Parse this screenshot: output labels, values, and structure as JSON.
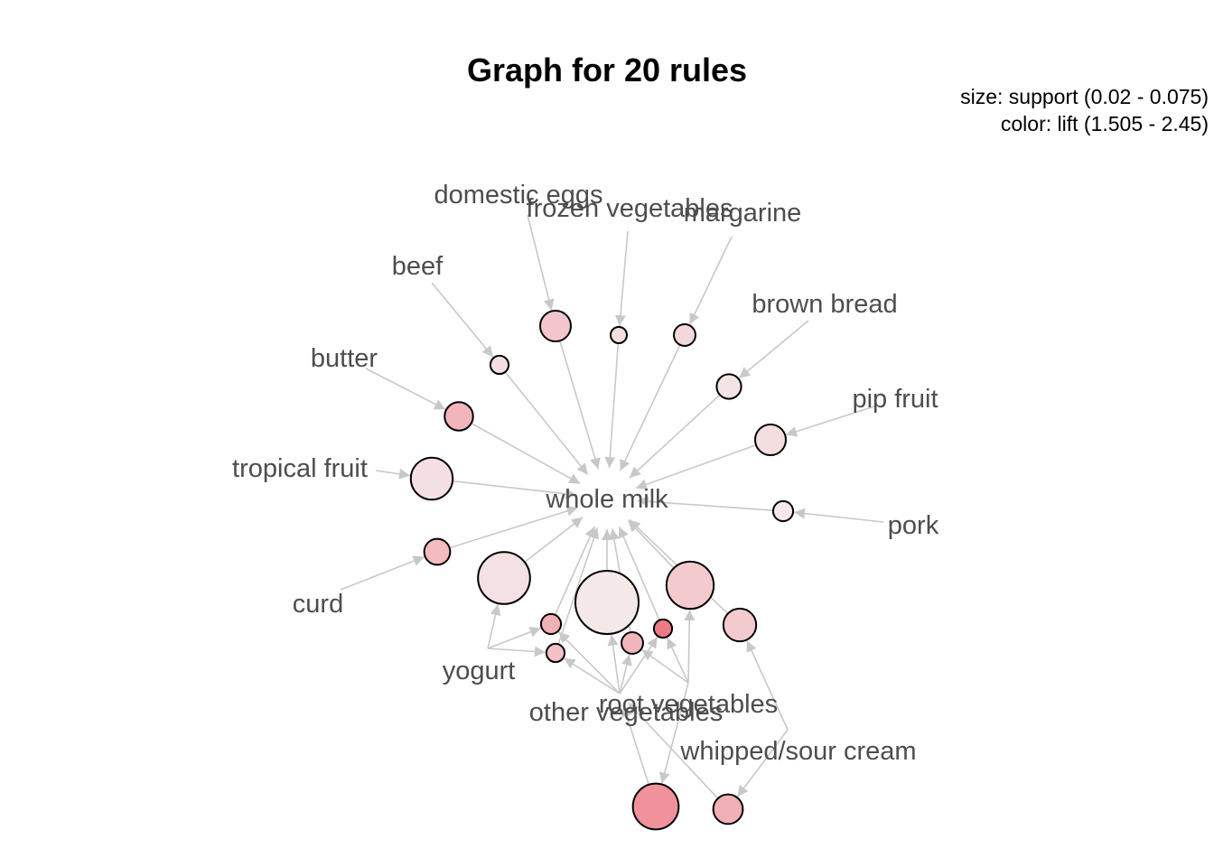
{
  "title": "Graph for 20 rules",
  "legend": {
    "size": "size: support (0.02 - 0.075)",
    "color": "color: lift (1.505 - 2.45)"
  },
  "colors": {
    "edge": "#c8c8c8",
    "label": "#4d4d4d",
    "node_stroke": "#000000",
    "lift_low": "#f4e9ea",
    "lift_high": "#ef7a86"
  },
  "items": {
    "whole_milk": "whole milk",
    "domestic_eggs": "domestic eggs",
    "frozen_vegetables": "frozen vegetables",
    "margarine": "margarine",
    "beef": "beef",
    "brown_bread": "brown bread",
    "butter": "butter",
    "pip_fruit": "pip fruit",
    "tropical_fruit": "tropical fruit",
    "pork": "pork",
    "curd": "curd",
    "yogurt": "yogurt",
    "root_vegetables": "root vegetables",
    "other_vegetables": "other vegetables",
    "whipped_sour_cream": "whipped/sour cream"
  },
  "rules": [
    {
      "lhs": [
        "domestic_eggs"
      ],
      "rhs": "whole_milk",
      "support": 0.03,
      "lift": 1.8
    },
    {
      "lhs": [
        "frozen_vegetables"
      ],
      "rhs": "whole_milk",
      "support": 0.02,
      "lift": 1.6
    },
    {
      "lhs": [
        "margarine"
      ],
      "rhs": "whole_milk",
      "support": 0.023,
      "lift": 1.65
    },
    {
      "lhs": [
        "beef"
      ],
      "rhs": "whole_milk",
      "support": 0.021,
      "lift": 1.6
    },
    {
      "lhs": [
        "brown_bread"
      ],
      "rhs": "whole_milk",
      "support": 0.025,
      "lift": 1.55
    },
    {
      "lhs": [
        "butter"
      ],
      "rhs": "whole_milk",
      "support": 0.028,
      "lift": 1.95
    },
    {
      "lhs": [
        "pip_fruit"
      ],
      "rhs": "whole_milk",
      "support": 0.03,
      "lift": 1.6
    },
    {
      "lhs": [
        "tropical_fruit"
      ],
      "rhs": "whole_milk",
      "support": 0.042,
      "lift": 1.58
    },
    {
      "lhs": [
        "pork"
      ],
      "rhs": "whole_milk",
      "support": 0.022,
      "lift": 1.52
    },
    {
      "lhs": [
        "curd"
      ],
      "rhs": "whole_milk",
      "support": 0.026,
      "lift": 1.9
    },
    {
      "lhs": [
        "yogurt"
      ],
      "rhs": "whole_milk",
      "support": 0.056,
      "lift": 1.57
    },
    {
      "lhs": [
        "other_vegetables"
      ],
      "rhs": "whole_milk",
      "support": 0.075,
      "lift": 1.51
    },
    {
      "lhs": [
        "root_vegetables"
      ],
      "rhs": "whole_milk",
      "support": 0.049,
      "lift": 1.76
    },
    {
      "lhs": [
        "whipped_sour_cream"
      ],
      "rhs": "whole_milk",
      "support": 0.032,
      "lift": 1.76
    },
    {
      "lhs": [
        "yogurt",
        "other_vegetables"
      ],
      "rhs": "whole_milk",
      "support": 0.022,
      "lift": 2.0
    },
    {
      "lhs": [
        "yogurt",
        "other_vegetables"
      ],
      "rhs": "whole_milk",
      "support": 0.021,
      "lift": 1.85
    },
    {
      "lhs": [
        "root_vegetables",
        "other_vegetables"
      ],
      "rhs": "whole_milk",
      "support": 0.023,
      "lift": 1.95
    },
    {
      "lhs": [
        "root_vegetables",
        "other_vegetables"
      ],
      "rhs": "whole_milk",
      "support": 0.021,
      "lift": 2.45
    },
    {
      "lhs": [
        "root_vegetables"
      ],
      "rhs": "other_vegetables",
      "support": 0.047,
      "lift": 2.25
    },
    {
      "lhs": [
        "whipped_sour_cream"
      ],
      "rhs": "other_vegetables",
      "support": 0.029,
      "lift": 2.0
    }
  ]
}
